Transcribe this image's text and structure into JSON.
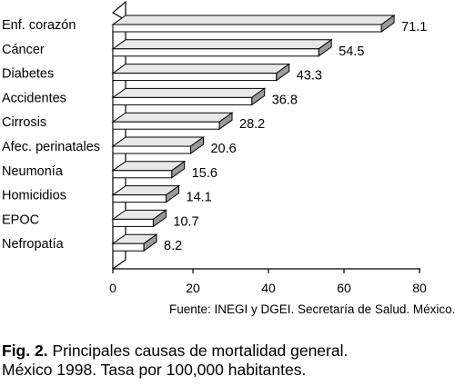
{
  "chart_data": {
    "type": "bar",
    "orientation": "horizontal",
    "style": "3d",
    "categories": [
      "Enf. corazón",
      "Cáncer",
      "Diabetes",
      "Accidentes",
      "Cirrosis",
      "Afec. perinatales",
      "Neumonía",
      "Homicidios",
      "EPOC",
      "Nefropatía"
    ],
    "values": [
      71.1,
      54.5,
      43.3,
      36.8,
      28.2,
      20.6,
      15.6,
      14.1,
      10.7,
      8.2
    ],
    "value_labels": [
      "71.1",
      "54.5",
      "43.3",
      "36.8",
      "28.2",
      "20.6",
      "15.6",
      "14.1",
      "10.7",
      "8.2"
    ],
    "xlim": [
      0,
      80
    ],
    "xticks": [
      "0",
      "20",
      "40",
      "60",
      "80"
    ],
    "grid": false,
    "bar_color": "#d4d4d4",
    "bar_top_color": "#e8e8e8",
    "bar_side_color": "#9a9a9a"
  },
  "source": "Fuente: INEGI y DGEI. Secretaría de Salud. México.",
  "caption": {
    "fig_label": "Fig. 2.",
    "line1": "Principales causas de mortalidad general.",
    "line2": "México 1998. Tasa por 100,000 habitantes."
  }
}
